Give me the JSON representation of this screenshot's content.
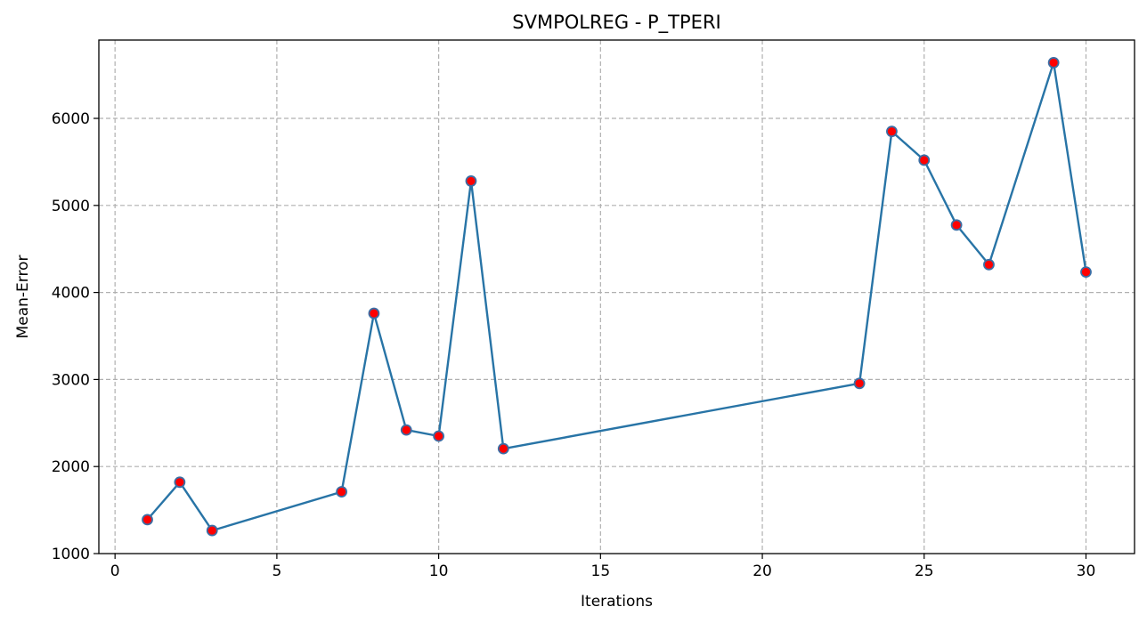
{
  "chart_data": {
    "type": "line",
    "title": "SVMPOLREG - P_TPERI",
    "xlabel": "Iterations",
    "ylabel": "Mean-Error",
    "xlim": [
      -0.5,
      31.5
    ],
    "ylim": [
      1000,
      6900
    ],
    "xticks": [
      0,
      5,
      10,
      15,
      20,
      25,
      30
    ],
    "yticks": [
      1000,
      2000,
      3000,
      4000,
      5000,
      6000
    ],
    "grid": true,
    "legend": "none",
    "line_color": "#2874a6",
    "marker_face_color": "#ff0000",
    "marker_edge_color": "#3b6ea5",
    "series": [
      {
        "x": [
          1,
          2,
          3,
          7,
          8,
          9,
          10,
          11,
          12,
          23,
          24,
          25,
          26,
          27,
          29,
          30
        ],
        "y": [
          1390,
          1820,
          1265,
          1710,
          3760,
          2420,
          2350,
          5280,
          2205,
          2955,
          5850,
          5520,
          4775,
          4320,
          6640,
          4235
        ]
      }
    ]
  }
}
